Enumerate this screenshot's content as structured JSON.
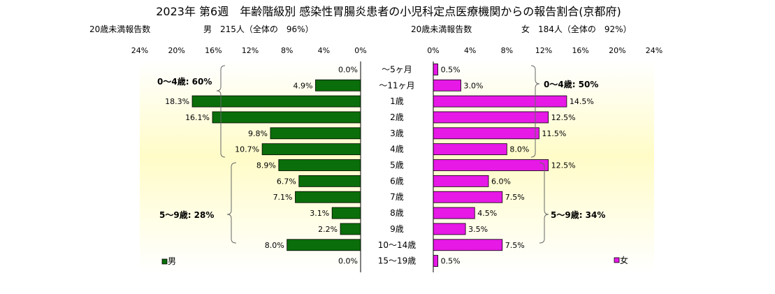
{
  "title": "2023年 第6週　年齢階級別 感染性胃腸炎患者の小児科定点医療機関からの報告割合(京都府)",
  "colors": {
    "male": "#0a6e0a",
    "female": "#e619e6",
    "bracket": "#666666",
    "axis": "#000000"
  },
  "male": {
    "sub_label": "20歳未満報告数",
    "summary": "男　215人（全体の　96%）",
    "legend": "男",
    "group_labels": [
      "0～4歳: 60%",
      "5～9歳: 28%"
    ]
  },
  "female": {
    "sub_label": "20歳未満報告数",
    "summary": "女　184人（全体の　92%）",
    "legend": "女",
    "group_labels": [
      "0～4歳: 50%",
      "5～9歳: 34%"
    ]
  },
  "chart_data": {
    "type": "bar",
    "orientation": "horizontal",
    "layout": "population-pyramid",
    "categories": [
      "～5ヶ月",
      "～11ヶ月",
      "1歳",
      "2歳",
      "3歳",
      "4歳",
      "5歳",
      "6歳",
      "7歳",
      "8歳",
      "9歳",
      "10～14歳",
      "15～19歳"
    ],
    "series": [
      {
        "name": "男",
        "values": [
          0.0,
          4.9,
          18.3,
          16.1,
          9.8,
          10.7,
          8.9,
          6.7,
          7.1,
          3.1,
          2.2,
          8.0,
          0.0
        ],
        "labels": [
          "0.0%",
          "4.9%",
          "18.3%",
          "16.1%",
          "9.8%",
          "10.7%",
          "8.9%",
          "6.7%",
          "7.1%",
          "3.1%",
          "2.2%",
          "8.0%",
          "0.0%"
        ]
      },
      {
        "name": "女",
        "values": [
          0.5,
          3.0,
          14.5,
          12.5,
          11.5,
          8.0,
          12.5,
          6.0,
          7.5,
          4.5,
          3.5,
          7.5,
          0.5
        ],
        "labels": [
          "0.5%",
          "3.0%",
          "14.5%",
          "12.5%",
          "11.5%",
          "8.0%",
          "12.5%",
          "6.0%",
          "7.5%",
          "4.5%",
          "3.5%",
          "7.5%",
          "0.5%"
        ]
      }
    ],
    "xlim": [
      0,
      24
    ],
    "ticks": [
      24,
      20,
      16,
      12,
      8,
      4,
      0
    ],
    "tick_labels_male": [
      "24%",
      "20%",
      "16%",
      "12%",
      "8%",
      "4%",
      "0%"
    ],
    "tick_labels_female": [
      "0%",
      "4%",
      "8%",
      "12%",
      "16%",
      "20%",
      "24%"
    ],
    "legend_placement": "bottom-left / bottom-right",
    "grid": false
  }
}
